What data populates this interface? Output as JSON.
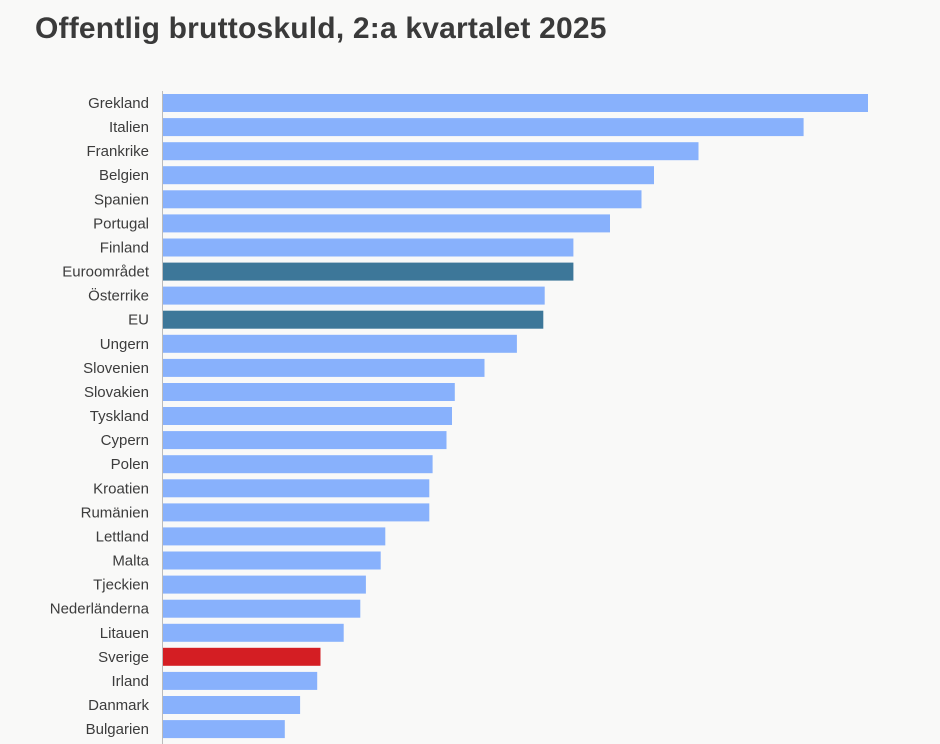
{
  "chart_data": {
    "type": "bar",
    "orientation": "horizontal",
    "title": "Offentlig bruttoskuld, 2:a kvartalet 2025",
    "categories": [
      "Grekland",
      "Italien",
      "Frankrike",
      "Belgien",
      "Spanien",
      "Portugal",
      "Finland",
      "Euroområdet",
      "Österrike",
      "EU",
      "Ungern",
      "Slovenien",
      "Slovakien",
      "Tyskland",
      "Cypern",
      "Polen",
      "Kroatien",
      "Rumänien",
      "Lettland",
      "Malta",
      "Tjeckien",
      "Nederländerna",
      "Litauen",
      "Sverige",
      "Irland",
      "Danmark",
      "Bulgarien"
    ],
    "values": [
      152.2,
      138.3,
      115.6,
      106.0,
      103.3,
      96.5,
      88.6,
      88.6,
      82.4,
      82.1,
      76.4,
      69.4,
      63.0,
      62.4,
      61.2,
      58.2,
      57.5,
      57.5,
      48.0,
      47.0,
      43.8,
      42.6,
      39.0,
      34.0,
      33.3,
      29.6,
      26.3
    ],
    "highlight": {
      "Euroområdet": "aggregate",
      "EU": "aggregate",
      "Sverige": "sweden"
    },
    "colors": {
      "default": "#88b1fc",
      "aggregate": "#3d7799",
      "sweden": "#d41e23",
      "axis": "#bbbbbb"
    },
    "xlim": [
      0,
      152.2
    ],
    "grid": false,
    "legend": "none"
  }
}
